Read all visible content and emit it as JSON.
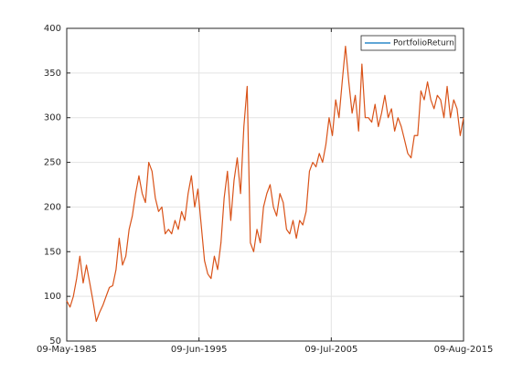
{
  "chart_data": {
    "type": "line",
    "x": [
      "1985-05-09",
      "1985-08-09",
      "1985-11-09",
      "1986-02-09",
      "1986-05-09",
      "1986-08-09",
      "1986-11-09",
      "1987-02-09",
      "1987-05-09",
      "1987-08-09",
      "1987-11-09",
      "1988-02-09",
      "1988-05-09",
      "1988-08-09",
      "1988-11-09",
      "1989-02-09",
      "1989-05-09",
      "1989-08-09",
      "1989-11-09",
      "1990-02-09",
      "1990-05-09",
      "1990-08-09",
      "1990-11-09",
      "1991-02-09",
      "1991-05-09",
      "1991-08-09",
      "1991-11-09",
      "1992-02-09",
      "1992-05-09",
      "1992-08-09",
      "1992-11-09",
      "1993-02-09",
      "1993-05-09",
      "1993-08-09",
      "1993-11-09",
      "1994-02-09",
      "1994-05-09",
      "1994-08-09",
      "1994-11-09",
      "1995-02-09",
      "1995-05-09",
      "1995-08-09",
      "1995-11-09",
      "1996-02-09",
      "1996-05-09",
      "1996-08-09",
      "1996-11-09",
      "1997-02-09",
      "1997-05-09",
      "1997-08-09",
      "1997-11-09",
      "1998-02-09",
      "1998-05-09",
      "1998-08-09",
      "1998-11-09",
      "1999-02-09",
      "1999-05-09",
      "1999-08-09",
      "1999-11-09",
      "2000-02-09",
      "2000-05-09",
      "2000-08-09",
      "2000-11-09",
      "2001-02-09",
      "2001-05-09",
      "2001-08-09",
      "2001-11-09",
      "2002-02-09",
      "2002-05-09",
      "2002-08-09",
      "2002-11-09",
      "2003-02-09",
      "2003-05-09",
      "2003-08-09",
      "2003-11-09",
      "2004-02-09",
      "2004-05-09",
      "2004-08-09",
      "2004-11-09",
      "2005-02-09",
      "2005-05-09",
      "2005-08-09",
      "2005-11-09",
      "2006-02-09",
      "2006-05-09",
      "2006-08-09",
      "2006-11-09",
      "2007-02-09",
      "2007-05-09",
      "2007-08-09",
      "2007-11-09",
      "2008-02-09",
      "2008-05-09",
      "2008-08-09",
      "2008-11-09",
      "2009-02-09",
      "2009-05-09",
      "2009-08-09",
      "2009-11-09",
      "2010-02-09",
      "2010-05-09",
      "2010-08-09",
      "2010-11-09",
      "2011-02-09",
      "2011-05-09",
      "2011-08-09",
      "2011-11-09",
      "2012-02-09",
      "2012-05-09",
      "2012-08-09",
      "2012-11-09",
      "2013-02-09",
      "2013-05-09",
      "2013-08-09",
      "2013-11-09",
      "2014-02-09",
      "2014-05-09",
      "2014-08-09",
      "2014-11-09",
      "2015-02-09",
      "2015-05-09",
      "2015-08-09"
    ],
    "series": [
      {
        "name": "PortfolioReturn",
        "color": "#d95319",
        "values": [
          95,
          88,
          100,
          120,
          145,
          115,
          135,
          115,
          95,
          72,
          82,
          90,
          100,
          110,
          112,
          130,
          165,
          135,
          145,
          175,
          190,
          215,
          235,
          215,
          205,
          250,
          240,
          210,
          195,
          200,
          170,
          175,
          170,
          185,
          175,
          195,
          185,
          215,
          235,
          200,
          220,
          180,
          140,
          125,
          120,
          145,
          130,
          160,
          210,
          240,
          185,
          230,
          255,
          215,
          290,
          335,
          160,
          150,
          175,
          160,
          200,
          215,
          225,
          200,
          190,
          215,
          205,
          175,
          170,
          185,
          165,
          185,
          180,
          195,
          240,
          250,
          245,
          260,
          250,
          270,
          300,
          280,
          320,
          300,
          340,
          380,
          340,
          305,
          325,
          285,
          360,
          300,
          300,
          295,
          315,
          290,
          305,
          325,
          300,
          310,
          285,
          300,
          290,
          275,
          260,
          255,
          280,
          280,
          330,
          320,
          340,
          320,
          310,
          325,
          320,
          300,
          335,
          300,
          320,
          310,
          280,
          300
        ]
      }
    ],
    "legend_color": "#0072bd",
    "xlim": [
      "1985-05-09",
      "2015-08-09"
    ],
    "xticks": [
      {
        "value": "1985-05-09",
        "label": "09-May-1985"
      },
      {
        "value": "1995-06-09",
        "label": "09-Jun-1995"
      },
      {
        "value": "2005-07-09",
        "label": "09-Jul-2005"
      },
      {
        "value": "2015-08-09",
        "label": "09-Aug-2015"
      }
    ],
    "ylim": [
      50,
      400
    ],
    "yticks": [
      50,
      100,
      150,
      200,
      250,
      300,
      350,
      400
    ],
    "grid": true,
    "legend": "northeast"
  }
}
